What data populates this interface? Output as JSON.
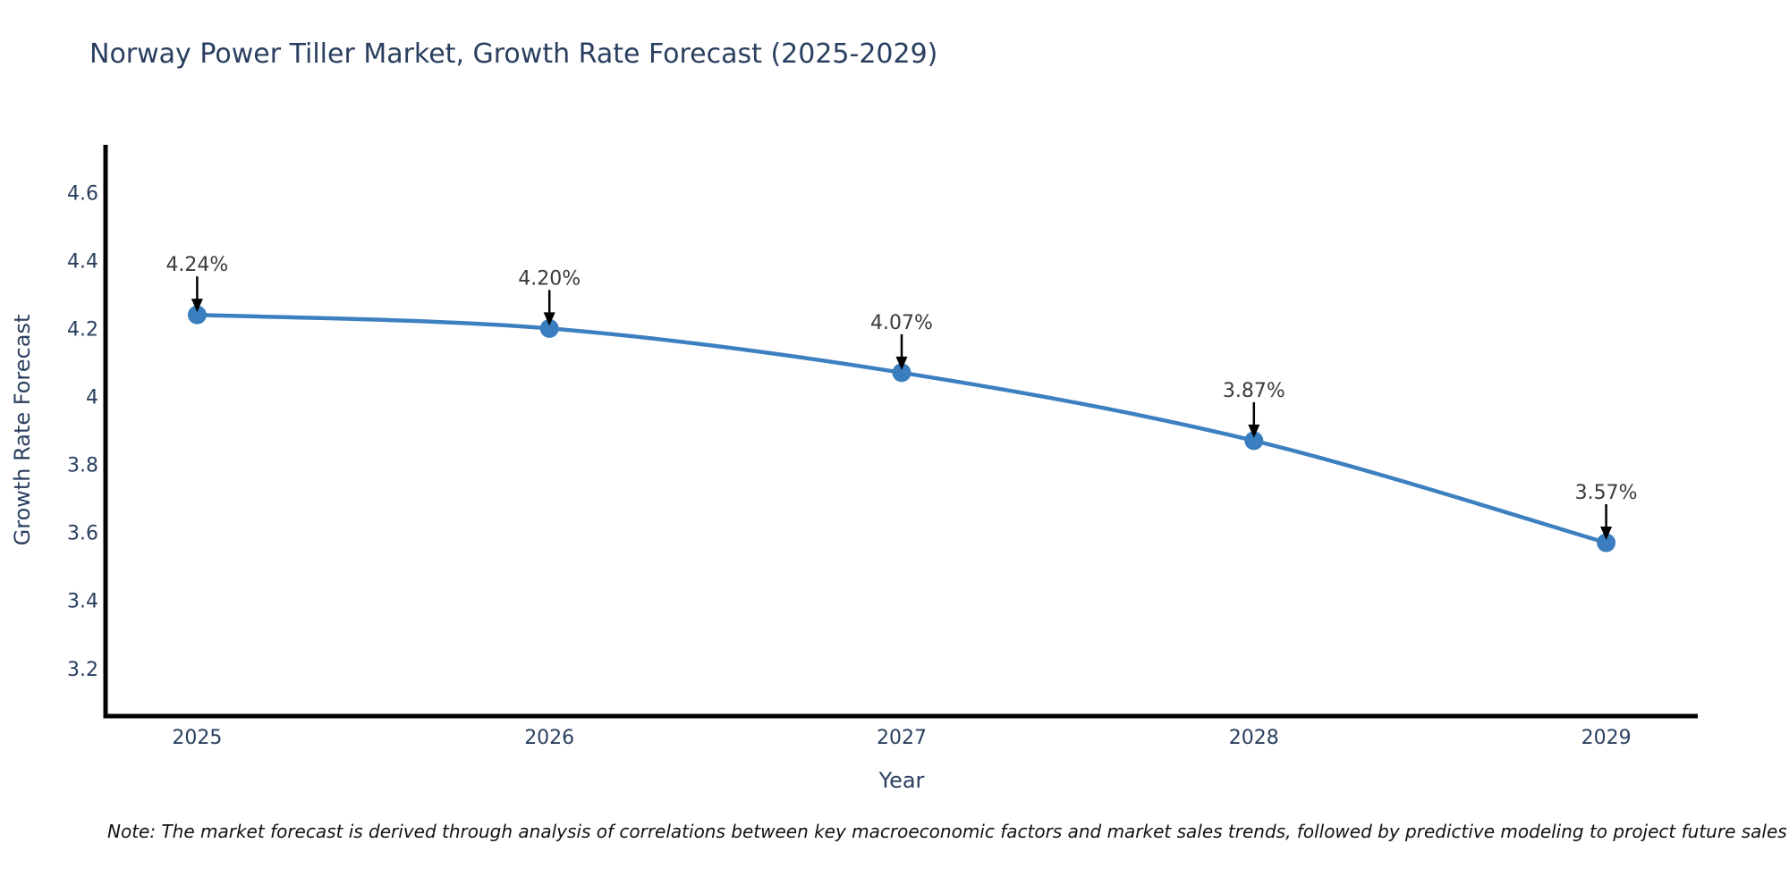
{
  "note": {
    "text": "Note: The market forecast is derived through analysis of correlations between key macroeconomic factors and market sales trends, followed by predictive modeling to project future sales"
  },
  "chart_data": {
    "type": "line",
    "title": "Norway Power Tiller Market, Growth Rate Forecast (2025-2029)",
    "xlabel": "Year",
    "ylabel": "Growth Rate Forecast",
    "x": [
      2025,
      2026,
      2027,
      2028,
      2029
    ],
    "y": [
      4.24,
      4.2,
      4.07,
      3.87,
      3.57
    ],
    "point_labels": [
      "4.24%",
      "4.20%",
      "4.07%",
      "3.87%",
      "3.57%"
    ],
    "xticks": {
      "labels": [
        "2025",
        "2026",
        "2027",
        "2028",
        "2029"
      ],
      "values": [
        2025,
        2026,
        2027,
        2028,
        2029
      ]
    },
    "yticks": {
      "labels": [
        "4.6",
        "4.4",
        "4.2",
        "4",
        "3.8",
        "3.6",
        "3.4",
        "3.2"
      ],
      "values": [
        4.6,
        4.4,
        4.2,
        4.0,
        3.8,
        3.6,
        3.4,
        3.2
      ]
    },
    "xlim": [
      2024.74,
      2029.26
    ],
    "ylim": [
      3.06,
      4.74
    ],
    "grid": false,
    "legend": "none",
    "line_smoothing": "spline",
    "colors": {
      "line": "#3d80c0",
      "marker": "#3a7ebf",
      "axis_line": "#000000",
      "axis_text": "#2a3f5f",
      "annotation_text": "#3a3a3a",
      "arrow": "#000000"
    }
  }
}
